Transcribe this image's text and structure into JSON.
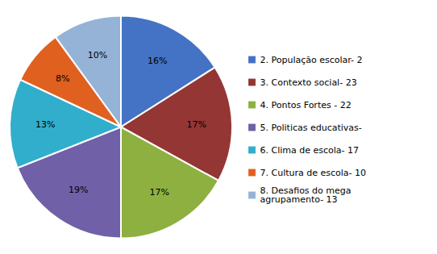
{
  "chart_data": {
    "type": "pie",
    "categories": [
      "2. População escolar- 2",
      "3. Contexto social- 23",
      "4. Pontos Fortes - 22",
      "5. Politicas educativas-",
      "6. Clima de escola- 17",
      "7. Cultura de escola- 10",
      "8. Desafios do mega\nagrupamento- 13"
    ],
    "values": [
      16,
      17,
      17,
      19,
      13,
      8,
      10
    ],
    "value_labels": [
      "16%",
      "17%",
      "17%",
      "19%",
      "13%",
      "8%",
      "10%"
    ],
    "colors": [
      "#4472C4",
      "#943634",
      "#8DB040",
      "#7060A8",
      "#31AECB",
      "#E06020",
      "#95B3D7"
    ],
    "data_labels": true,
    "legend": "right"
  }
}
